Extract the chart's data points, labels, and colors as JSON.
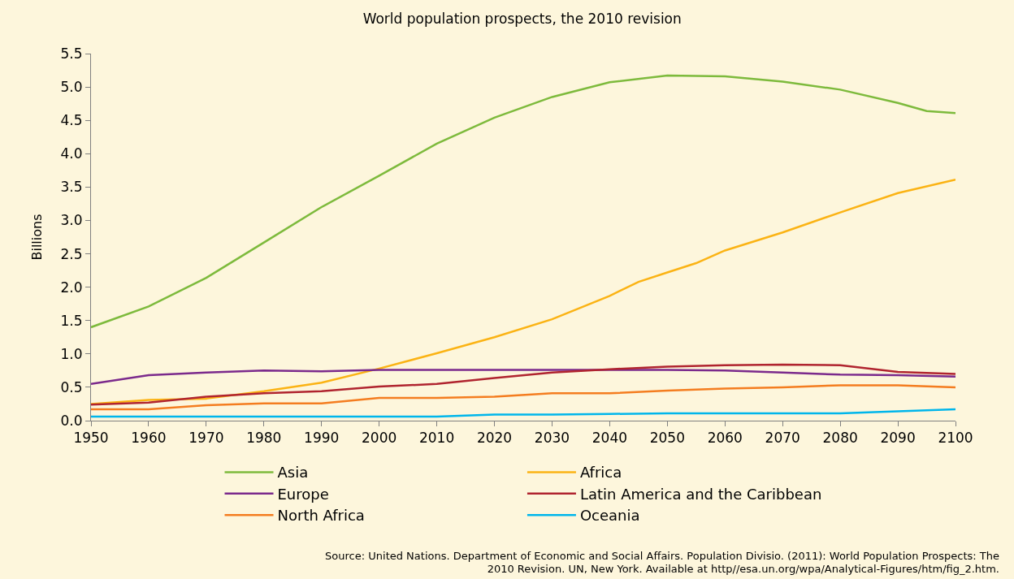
{
  "chart_data": {
    "type": "line",
    "title": "World population prospects, the 2010 revision",
    "ylabel": "Billions",
    "xlim": [
      1950,
      2100
    ],
    "xticks": [
      1950,
      1960,
      1970,
      1980,
      1990,
      2000,
      2010,
      2020,
      2030,
      2040,
      2050,
      2060,
      2070,
      2080,
      2090,
      2100
    ],
    "ylim": [
      0,
      5.5
    ],
    "yticks": [
      {
        "value": 0,
        "label": "0.0"
      },
      0.5,
      {
        "value": 1,
        "label": "1.0"
      },
      1.5,
      {
        "value": 2,
        "label": "2.0"
      },
      2.5,
      {
        "value": 3,
        "label": "3.0"
      },
      3.5,
      {
        "value": 4,
        "label": "4.0"
      },
      4.5,
      {
        "value": 5,
        "label": "5.0"
      },
      5.5
    ],
    "grid": false,
    "legend": "bottom",
    "marker": "none",
    "line_style": "solid",
    "series": [
      {
        "name": "Asia",
        "color": "#7dba3c",
        "x": [
          1950,
          1960,
          1970,
          1980,
          1990,
          2000,
          2010,
          2020,
          2030,
          2040,
          2050,
          2060,
          2070,
          2080,
          2090,
          2095,
          2100
        ],
        "values": [
          1.4,
          1.71,
          2.14,
          2.67,
          3.2,
          3.67,
          4.15,
          4.54,
          4.85,
          5.07,
          5.17,
          5.16,
          5.08,
          4.96,
          4.76,
          4.64,
          4.61
        ]
      },
      {
        "name": "Africa",
        "color": "#fbb314",
        "x": [
          1950,
          1960,
          1970,
          1980,
          1990,
          2000,
          2010,
          2020,
          2030,
          2040,
          2045,
          2050,
          2055,
          2060,
          2070,
          2080,
          2090,
          2100
        ],
        "values": [
          0.25,
          0.31,
          0.33,
          0.44,
          0.57,
          0.78,
          1.01,
          1.25,
          1.52,
          1.87,
          2.08,
          2.22,
          2.36,
          2.55,
          2.82,
          3.12,
          3.41,
          3.61
        ]
      },
      {
        "name": "Europe",
        "color": "#7b2a8c",
        "x": [
          1950,
          1960,
          1970,
          1980,
          1990,
          2000,
          2010,
          2020,
          2030,
          2040,
          2050,
          2060,
          2070,
          2080,
          2090,
          2100
        ],
        "values": [
          0.55,
          0.68,
          0.72,
          0.75,
          0.74,
          0.76,
          0.76,
          0.76,
          0.76,
          0.76,
          0.76,
          0.75,
          0.72,
          0.69,
          0.68,
          0.66
        ]
      },
      {
        "name": "Latin America and the Caribbean",
        "color": "#b0242f",
        "x": [
          1950,
          1960,
          1970,
          1980,
          1990,
          2000,
          2010,
          2020,
          2030,
          2040,
          2050,
          2060,
          2070,
          2080,
          2090,
          2100
        ],
        "values": [
          0.24,
          0.27,
          0.36,
          0.41,
          0.44,
          0.51,
          0.55,
          0.64,
          0.72,
          0.77,
          0.81,
          0.83,
          0.84,
          0.83,
          0.73,
          0.7
        ]
      },
      {
        "name": "North Africa",
        "color": "#f47d20",
        "x": [
          1950,
          1960,
          1970,
          1980,
          1990,
          2000,
          2010,
          2020,
          2030,
          2040,
          2050,
          2060,
          2070,
          2080,
          2090,
          2100
        ],
        "values": [
          0.17,
          0.17,
          0.23,
          0.26,
          0.26,
          0.34,
          0.34,
          0.36,
          0.41,
          0.41,
          0.45,
          0.48,
          0.5,
          0.53,
          0.53,
          0.5
        ]
      },
      {
        "name": "Oceania",
        "color": "#00b6eb",
        "x": [
          1950,
          1960,
          1970,
          1980,
          1990,
          2000,
          2010,
          2020,
          2030,
          2040,
          2050,
          2060,
          2070,
          2080,
          2090,
          2100
        ],
        "values": [
          0.06,
          0.06,
          0.06,
          0.06,
          0.06,
          0.06,
          0.06,
          0.09,
          0.09,
          0.1,
          0.11,
          0.11,
          0.11,
          0.11,
          0.14,
          0.17
        ]
      }
    ],
    "annotations": [
      "Source: United Nations. Department of Economic and Social Affairs. Population Divisio. (2011): World Population Prospects: The 2010 Revision. UN, New York. Available at http//esa.un.org/wpa/Analytical-Figures/htm/fig_2.htm."
    ]
  }
}
